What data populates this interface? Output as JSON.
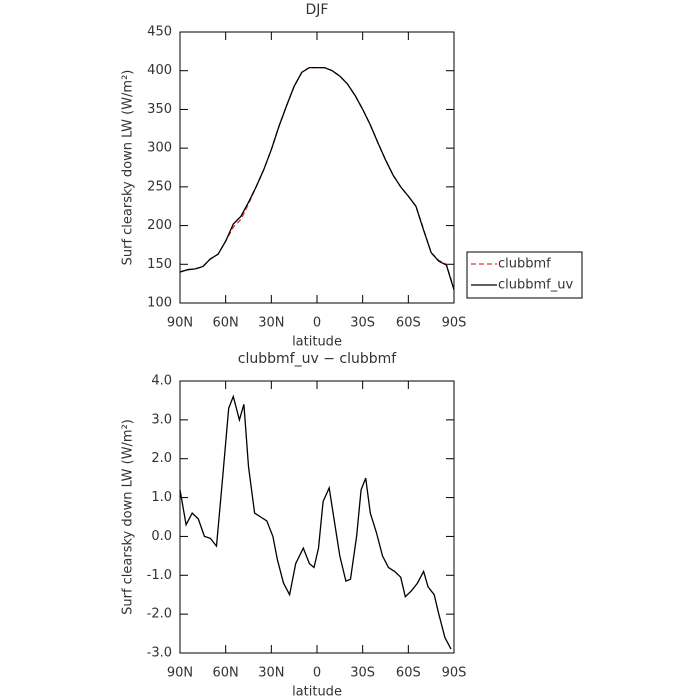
{
  "chart_data": [
    {
      "type": "line",
      "title": "DJF",
      "xlabel": "latitude",
      "ylabel": "Surf clearsky down LW (W/m²)",
      "xlim": [
        90,
        -90
      ],
      "xticks": [
        {
          "value": 90,
          "label": "90N"
        },
        {
          "value": 60,
          "label": "60N"
        },
        {
          "value": 30,
          "label": "30N"
        },
        0,
        {
          "value": -30,
          "label": "30S"
        },
        {
          "value": -60,
          "label": "60S"
        },
        {
          "value": -90,
          "label": "90S"
        }
      ],
      "ylim": [
        100,
        450
      ],
      "yticks": [
        100,
        150,
        200,
        250,
        300,
        350,
        400,
        450
      ],
      "legend": "right",
      "x": [
        90,
        85,
        80,
        75,
        70,
        65,
        60,
        55,
        50,
        45,
        40,
        35,
        30,
        25,
        20,
        15,
        10,
        5,
        0,
        -5,
        -10,
        -15,
        -20,
        -25,
        -30,
        -35,
        -40,
        -45,
        -50,
        -55,
        -60,
        -65,
        -70,
        -75,
        -80,
        -85,
        -90
      ],
      "series": [
        {
          "name": "clubbmf",
          "color": "#e03030",
          "dashed": true,
          "values": [
            140,
            143,
            144,
            147,
            157,
            163,
            180,
            198,
            208,
            228,
            250,
            272,
            298,
            328,
            355,
            380,
            398,
            404,
            404,
            404,
            400,
            393,
            383,
            368,
            350,
            330,
            307,
            285,
            265,
            250,
            238,
            225,
            195,
            165,
            155,
            150,
            118
          ]
        },
        {
          "name": "clubbmf_uv",
          "color": "#000000",
          "dashed": false,
          "values": [
            140,
            143,
            144,
            147,
            157,
            163,
            180,
            202,
            212,
            230,
            250,
            272,
            298,
            328,
            355,
            380,
            398,
            404,
            404,
            404,
            400,
            393,
            383,
            368,
            350,
            330,
            307,
            285,
            265,
            250,
            238,
            225,
            194,
            165,
            154,
            149,
            117
          ]
        }
      ]
    },
    {
      "type": "line",
      "title": "clubbmf_uv − clubbmf",
      "xlabel": "latitude",
      "ylabel": "Surf clearsky down LW (W/m²)",
      "xlim": [
        90,
        -90
      ],
      "xticks": [
        {
          "value": 90,
          "label": "90N"
        },
        {
          "value": 60,
          "label": "60N"
        },
        {
          "value": 30,
          "label": "30N"
        },
        0,
        {
          "value": -30,
          "label": "30S"
        },
        {
          "value": -60,
          "label": "60S"
        },
        {
          "value": -90,
          "label": "90S"
        }
      ],
      "ylim": [
        -3,
        4
      ],
      "yticks": [
        {
          "value": -3,
          "label": "-3.0"
        },
        {
          "value": -2,
          "label": "-2.0"
        },
        {
          "value": -1,
          "label": "-1.0"
        },
        {
          "value": 0,
          "label": "0.0"
        },
        {
          "value": 1,
          "label": "1.0"
        },
        {
          "value": 2,
          "label": "2.0"
        },
        {
          "value": 3,
          "label": "3.0"
        },
        {
          "value": 4,
          "label": "4.0"
        }
      ],
      "x": [
        90,
        86,
        82,
        78,
        74,
        70,
        66,
        62,
        58,
        55,
        51,
        48,
        45,
        41,
        37,
        33,
        29,
        26,
        22,
        18,
        14,
        9,
        5,
        2,
        -1,
        -4,
        -8,
        -11,
        -15,
        -19,
        -22,
        -26,
        -29,
        -32,
        -35,
        -39,
        -43,
        -47,
        -51,
        -55,
        -58,
        -62,
        -66,
        -70,
        -73,
        -77,
        -80,
        -84,
        -88
      ],
      "series": [
        {
          "color": "#000000",
          "dashed": false,
          "values": [
            1.2,
            0.3,
            0.6,
            0.45,
            0.0,
            -0.05,
            -0.25,
            1.5,
            3.3,
            3.6,
            3.0,
            3.4,
            1.8,
            0.6,
            0.5,
            0.4,
            0.0,
            -0.6,
            -1.2,
            -1.5,
            -0.7,
            -0.3,
            -0.7,
            -0.8,
            -0.3,
            0.9,
            1.25,
            0.5,
            -0.5,
            -1.15,
            -1.1,
            0.0,
            1.2,
            1.5,
            0.6,
            0.1,
            -0.5,
            -0.8,
            -0.9,
            -1.05,
            -1.55,
            -1.4,
            -1.2,
            -0.9,
            -1.3,
            -1.5,
            -2.0,
            -2.6,
            -2.9
          ]
        }
      ]
    }
  ]
}
